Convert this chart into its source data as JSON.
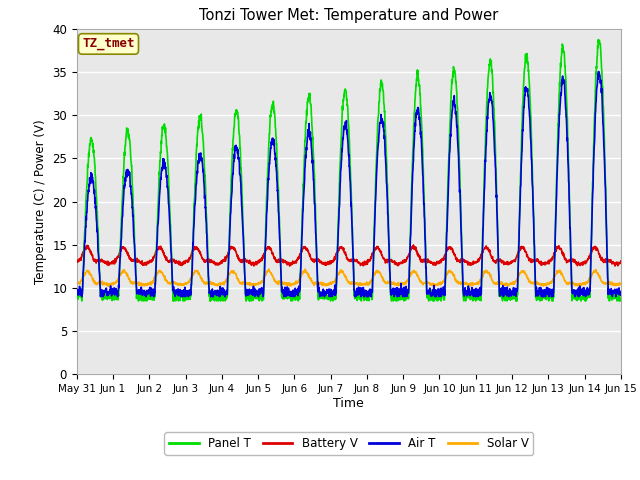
{
  "title": "Tonzi Tower Met: Temperature and Power",
  "xlabel": "Time",
  "ylabel": "Temperature (C) / Power (V)",
  "annotation": "TZ_tmet",
  "ylim": [
    0,
    40
  ],
  "yticks": [
    0,
    5,
    10,
    15,
    20,
    25,
    30,
    35,
    40
  ],
  "xtick_labels": [
    "May 31",
    "Jun 1",
    "Jun 2",
    "Jun 3",
    "Jun 4",
    "Jun 5",
    "Jun 6",
    "Jun 7",
    "Jun 8",
    "Jun 9",
    "Jun 10",
    "Jun 11",
    "Jun 12",
    "Jun 13",
    "Jun 14",
    "Jun 15"
  ],
  "colors": {
    "panel_t": "#00dd00",
    "battery_v": "#dd0000",
    "air_t": "#0000dd",
    "solar_v": "#ffaa00"
  },
  "legend_labels": [
    "Panel T",
    "Battery V",
    "Air T",
    "Solar V"
  ],
  "plot_bg": "#e8e8e8",
  "fig_bg": "#ffffff",
  "annotation_box_color": "#ffffcc",
  "annotation_text_color": "#880000",
  "annotation_edge_color": "#888800"
}
